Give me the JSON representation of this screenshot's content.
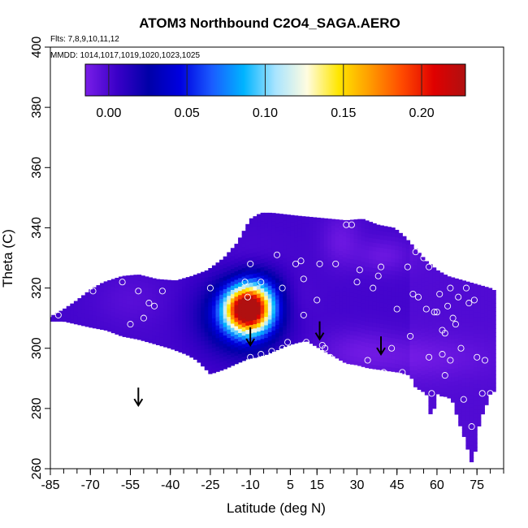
{
  "chart_data": {
    "type": "heatmap",
    "title": "ATOM3 Northbound C2O4_SAGA.AERO",
    "subtitle_flights": "Flts: 7,8,9,10,11,12",
    "subtitle_dates": "MMDD: 1014,1017,1019,1020,1023,1025",
    "xlabel": "Latitude (deg N)",
    "ylabel": "Theta (C)",
    "xlim": [
      -85,
      85
    ],
    "ylim": [
      260,
      400
    ],
    "x_ticks": [
      -85,
      -70,
      -55,
      -40,
      -25,
      -10,
      5,
      15,
      30,
      45,
      60,
      75
    ],
    "y_ticks": [
      260,
      280,
      300,
      320,
      340,
      360,
      380,
      400
    ],
    "colorbar": {
      "ticks": [
        "0.00",
        "0.05",
        "0.10",
        "0.15",
        "0.20"
      ],
      "range": [
        -0.015,
        0.228
      ],
      "colors": [
        "#7a1ee8",
        "#3a00c8",
        "#0000a8",
        "#0000e0",
        "#1a5cff",
        "#00b4ff",
        "#a8e4ff",
        "#fffce0",
        "#ffe600",
        "#ff9a00",
        "#ff4a00",
        "#e00000",
        "#b01010"
      ]
    },
    "arrows_x": [
      -52,
      -10,
      16,
      39
    ],
    "arrow_theta": [
      281,
      301,
      303,
      298
    ],
    "sample_points": [
      [
        -82,
        311
      ],
      [
        -69,
        319
      ],
      [
        -58,
        322
      ],
      [
        -55,
        308
      ],
      [
        -52,
        319
      ],
      [
        -50,
        310
      ],
      [
        -48,
        315
      ],
      [
        -46,
        314
      ],
      [
        -43,
        319
      ],
      [
        -25,
        320
      ],
      [
        -20,
        290
      ],
      [
        -12,
        322
      ],
      [
        -10,
        328
      ],
      [
        -11,
        317
      ],
      [
        -10,
        297
      ],
      [
        -6,
        322
      ],
      [
        -6,
        298
      ],
      [
        -2,
        299
      ],
      [
        0,
        331
      ],
      [
        2,
        320
      ],
      [
        2,
        300
      ],
      [
        4,
        302
      ],
      [
        7,
        328
      ],
      [
        9,
        329
      ],
      [
        10,
        323
      ],
      [
        10,
        311
      ],
      [
        11,
        302
      ],
      [
        12,
        300
      ],
      [
        15,
        316
      ],
      [
        16,
        328
      ],
      [
        17,
        301
      ],
      [
        18,
        300
      ],
      [
        20,
        297
      ],
      [
        22,
        328
      ],
      [
        26,
        341
      ],
      [
        28,
        341
      ],
      [
        30,
        322
      ],
      [
        31,
        326
      ],
      [
        34,
        296
      ],
      [
        36,
        320
      ],
      [
        38,
        324
      ],
      [
        39,
        327
      ],
      [
        40,
        292
      ],
      [
        43,
        300
      ],
      [
        45,
        313
      ],
      [
        47,
        292
      ],
      [
        49,
        327
      ],
      [
        50,
        304
      ],
      [
        51,
        318
      ],
      [
        52,
        332
      ],
      [
        53,
        317
      ],
      [
        54,
        334
      ],
      [
        55,
        330
      ],
      [
        56,
        313
      ],
      [
        57,
        327
      ],
      [
        57,
        297
      ],
      [
        58,
        285
      ],
      [
        59,
        312
      ],
      [
        60,
        312
      ],
      [
        61,
        318
      ],
      [
        62,
        306
      ],
      [
        62,
        298
      ],
      [
        63,
        305
      ],
      [
        63,
        291
      ],
      [
        64,
        314
      ],
      [
        65,
        296
      ],
      [
        65,
        320
      ],
      [
        66,
        310
      ],
      [
        67,
        308
      ],
      [
        68,
        317
      ],
      [
        69,
        300
      ],
      [
        70,
        283
      ],
      [
        71,
        320
      ],
      [
        72,
        315
      ],
      [
        73,
        274
      ],
      [
        74,
        316
      ],
      [
        75,
        297
      ],
      [
        77,
        285
      ],
      [
        78,
        296
      ],
      [
        80,
        285
      ]
    ]
  }
}
